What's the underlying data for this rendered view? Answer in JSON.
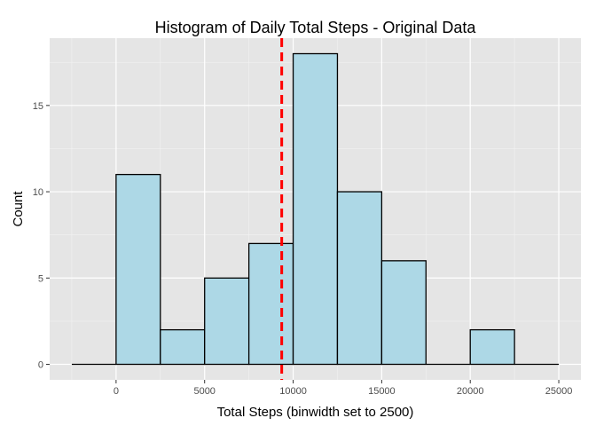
{
  "chart_data": {
    "type": "bar",
    "title": "Histogram of Daily Total Steps - Original Data",
    "xlabel": "Total Steps (binwidth set to 2500)",
    "ylabel": "Count",
    "binwidth": 2500,
    "bins": [
      {
        "start": -2500,
        "end": 0,
        "count": 0
      },
      {
        "start": 0,
        "end": 2500,
        "count": 11
      },
      {
        "start": 2500,
        "end": 5000,
        "count": 2
      },
      {
        "start": 5000,
        "end": 7500,
        "count": 5
      },
      {
        "start": 7500,
        "end": 10000,
        "count": 7
      },
      {
        "start": 10000,
        "end": 12500,
        "count": 18
      },
      {
        "start": 12500,
        "end": 15000,
        "count": 10
      },
      {
        "start": 15000,
        "end": 17500,
        "count": 6
      },
      {
        "start": 17500,
        "end": 20000,
        "count": 0
      },
      {
        "start": 20000,
        "end": 22500,
        "count": 2
      },
      {
        "start": 22500,
        "end": 25000,
        "count": 0
      }
    ],
    "mean_line": {
      "x": 9354,
      "color": "#ff0000",
      "style": "dashed"
    },
    "xlim": [
      -3750,
      26250
    ],
    "ylim": [
      -0.9,
      18.9
    ],
    "x_ticks": [
      0,
      5000,
      10000,
      15000,
      20000,
      25000
    ],
    "y_ticks": [
      0,
      5,
      10,
      15
    ],
    "grid": true,
    "colors": {
      "panel_bg": "#e5e5e5",
      "grid_major": "#ffffff",
      "grid_minor": "#f2f2f2",
      "bar_fill": "#add8e6",
      "bar_outline": "#000000"
    }
  }
}
